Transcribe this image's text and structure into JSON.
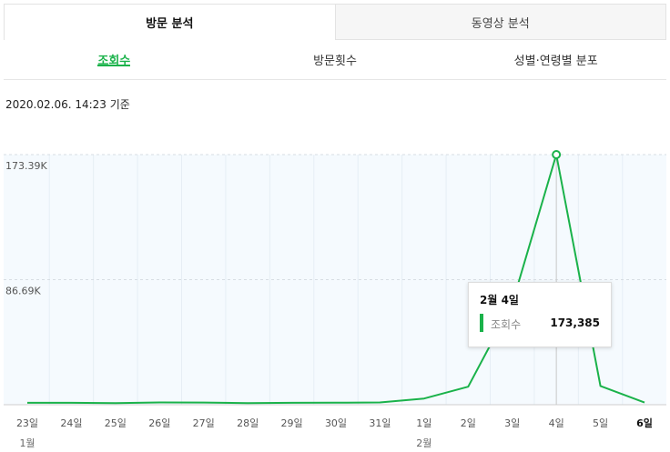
{
  "top_tabs": [
    {
      "label": "방문 분석",
      "active": true
    },
    {
      "label": "동영상 분석",
      "active": false
    }
  ],
  "sub_tabs": [
    {
      "label": "조회수",
      "active": true
    },
    {
      "label": "방문횟수",
      "active": false
    },
    {
      "label": "성별·연령별 분포",
      "active": false
    }
  ],
  "timestamp": "2020.02.06. 14:23 기준",
  "colors": {
    "line": "#1ab24a",
    "accent": "#1ab24a",
    "plot_bg": "#f5fafe"
  },
  "chart_data": {
    "type": "line",
    "x": [
      "23일",
      "24일",
      "25일",
      "26일",
      "27일",
      "28일",
      "29일",
      "30일",
      "31일",
      "1일",
      "2일",
      "3일",
      "4일",
      "5일",
      "6일"
    ],
    "month_labels": [
      {
        "at": "23일",
        "label": "1월"
      },
      {
        "at": "1일",
        "label": "2월"
      }
    ],
    "series": [
      {
        "name": "조회수",
        "values": [
          1300,
          1300,
          1100,
          1600,
          1500,
          1100,
          1300,
          1400,
          1600,
          4300,
          12500,
          70000,
          173385,
          13000,
          1500
        ]
      }
    ],
    "y_ticks": [
      {
        "value": 86690,
        "label": "86.69K"
      },
      {
        "value": 173390,
        "label": "173.39K"
      }
    ],
    "ylim": [
      0,
      173390
    ],
    "highlight_index": 12,
    "bold_label_index": 14,
    "grid": true,
    "tooltip": {
      "title": "2월 4일",
      "series": "조회수",
      "value": "173,385"
    }
  }
}
